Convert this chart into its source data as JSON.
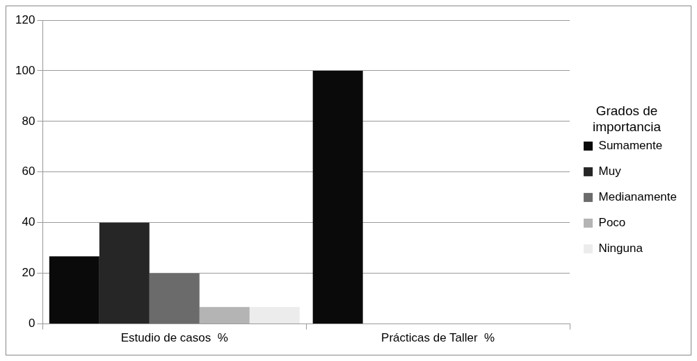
{
  "chart_data": {
    "type": "bar",
    "legend_title": "Grados de importancia",
    "categories": [
      "Estudio de casos  %",
      "Prácticas de Taller  %"
    ],
    "series": [
      {
        "name": "Sumamente",
        "color": "#0a0a0a",
        "values": [
          26.7,
          100
        ]
      },
      {
        "name": "Muy",
        "color": "#262626",
        "values": [
          40,
          0
        ]
      },
      {
        "name": "Medianamente",
        "color": "#6b6b6b",
        "values": [
          20,
          0
        ]
      },
      {
        "name": "Poco",
        "color": "#b4b4b4",
        "values": [
          6.7,
          0
        ]
      },
      {
        "name": "Ninguna",
        "color": "#ececec",
        "values": [
          6.7,
          0
        ]
      }
    ],
    "ylim": [
      0,
      120
    ],
    "yticks": [
      0,
      20,
      40,
      60,
      80,
      100,
      120
    ],
    "grid": "y",
    "legend": "right"
  }
}
